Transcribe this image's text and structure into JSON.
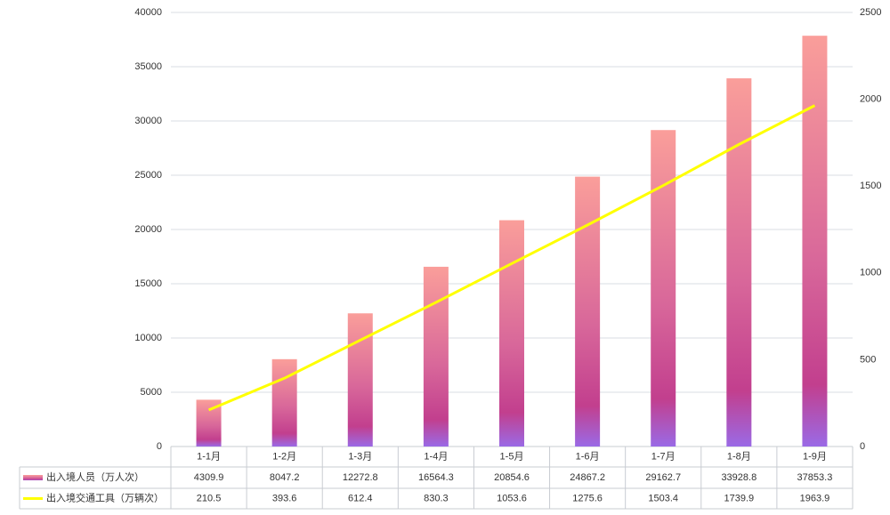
{
  "chart_data": {
    "type": "bar",
    "categories": [
      "1-1月",
      "1-2月",
      "1-3月",
      "1-4月",
      "1-5月",
      "1-6月",
      "1-7月",
      "1-8月",
      "1-9月"
    ],
    "series": [
      {
        "name": "出入境人员（万人次）",
        "type": "bar",
        "color": "#c8489a",
        "values": [
          4309.9,
          8047.2,
          12272.8,
          16564.3,
          20854.6,
          24867.2,
          29162.7,
          33928.8,
          37853.3
        ]
      },
      {
        "name": "出入境交通工具（万辆次）",
        "type": "line",
        "axis": "y2",
        "color": "#ffff00",
        "values": [
          210.5,
          393.6,
          612.4,
          830.3,
          1053.6,
          1275.6,
          1503.4,
          1739.9,
          1963.9
        ]
      }
    ],
    "ylim": [
      0,
      40000
    ],
    "yticks": [
      0,
      5000,
      10000,
      15000,
      20000,
      25000,
      30000,
      35000,
      40000
    ],
    "y2lim": [
      0,
      2500
    ],
    "y2ticks": [
      0,
      500,
      1000,
      1500,
      2000,
      2500
    ],
    "grid": true
  }
}
